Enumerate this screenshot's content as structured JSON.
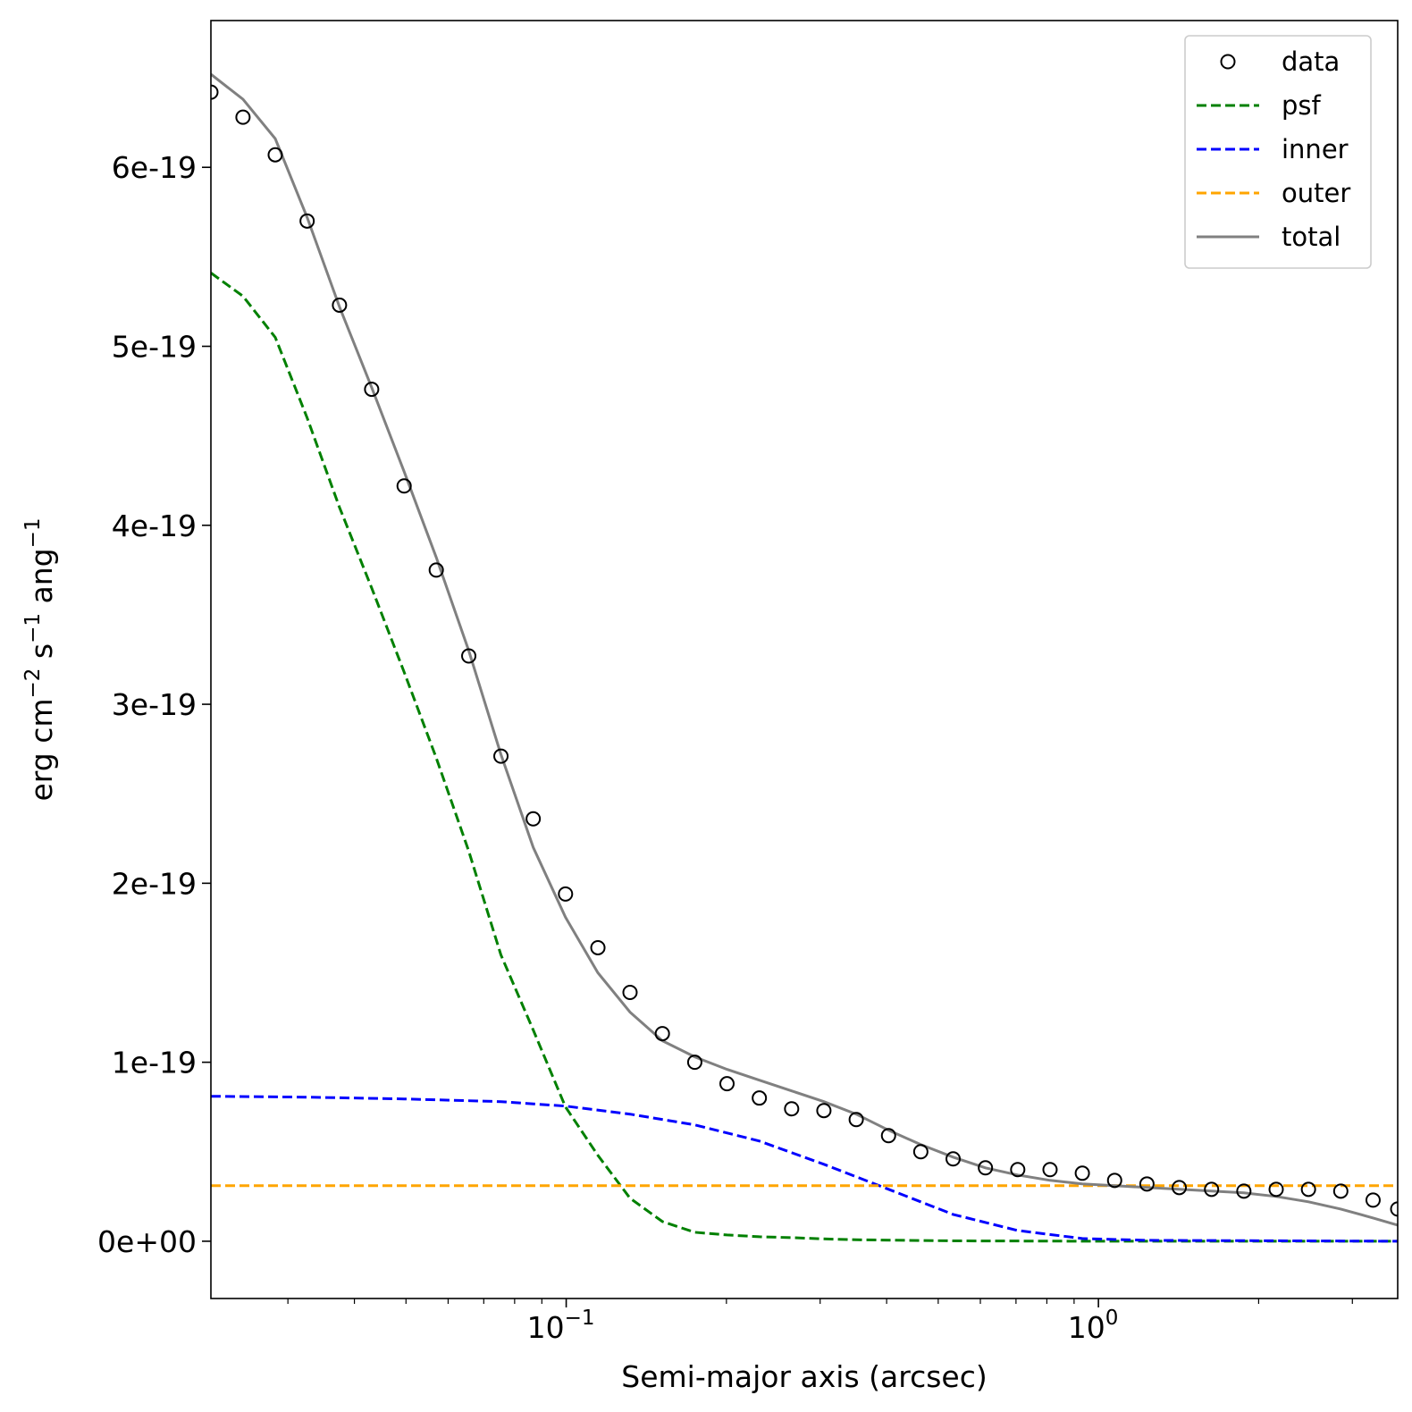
{
  "chart_data": {
    "type": "line",
    "title": "",
    "xlabel": "Semi-major axis (arcsec)",
    "ylabel": "erg cm^-2 s^-1 ang^-1",
    "xscale": "log",
    "xlim": [
      0.0215,
      3.65
    ],
    "ylim": [
      -3.2e-20,
      6.82e-19
    ],
    "grid": false,
    "legend_position": "top-right",
    "x_ticks": [
      {
        "value": 0.1,
        "base": "10",
        "exponent": "−1"
      },
      {
        "value": 1.0,
        "base": "10",
        "exponent": "0"
      }
    ],
    "y_ticks": [
      {
        "value": 0,
        "label": "0e+00"
      },
      {
        "value": 1e-19,
        "label": "1e-19"
      },
      {
        "value": 2e-19,
        "label": "2e-19"
      },
      {
        "value": 3e-19,
        "label": "3e-19"
      },
      {
        "value": 4e-19,
        "label": "4e-19"
      },
      {
        "value": 5e-19,
        "label": "5e-19"
      },
      {
        "value": 6e-19,
        "label": "6e-19"
      }
    ],
    "series": [
      {
        "name": "data",
        "style": "circle",
        "color": "#000000",
        "x": [
          0.0215,
          0.0247,
          0.0284,
          0.0326,
          0.0375,
          0.0431,
          0.0496,
          0.057,
          0.0656,
          0.0754,
          0.0867,
          0.0997,
          0.1147,
          0.1318,
          0.1516,
          0.1744,
          0.2005,
          0.2306,
          0.2652,
          0.3049,
          0.3507,
          0.4033,
          0.4637,
          0.5333,
          0.6133,
          0.7053,
          0.8111,
          0.9327,
          1.0726,
          1.2335,
          1.4186,
          1.6314,
          1.8761,
          2.1575,
          2.4811,
          2.8533,
          3.2813,
          3.65
        ],
        "values": [
          6.42e-19,
          6.28e-19,
          6.07e-19,
          5.7e-19,
          5.23e-19,
          4.76e-19,
          4.22e-19,
          3.75e-19,
          3.27e-19,
          2.71e-19,
          2.36e-19,
          1.94e-19,
          1.64e-19,
          1.39e-19,
          1.16e-19,
          1e-19,
          8.8e-20,
          8e-20,
          7.4e-20,
          7.3e-20,
          6.8e-20,
          5.9e-20,
          5e-20,
          4.6e-20,
          4.1e-20,
          4e-20,
          4e-20,
          3.8e-20,
          3.4e-20,
          3.2e-20,
          3e-20,
          2.9e-20,
          2.8e-20,
          2.9e-20,
          2.9e-20,
          2.8e-20,
          2.3e-20,
          1.8e-20
        ]
      },
      {
        "name": "psf",
        "style": "dashed",
        "color": "#008000",
        "x": [
          0.0215,
          0.0247,
          0.0284,
          0.0326,
          0.0375,
          0.0431,
          0.0496,
          0.057,
          0.0656,
          0.0754,
          0.0867,
          0.0997,
          0.1147,
          0.1318,
          0.1516,
          0.1744,
          0.2005,
          0.2306,
          0.2652,
          0.3049,
          0.3507,
          0.5333,
          1.0,
          3.65
        ],
        "values": [
          5.41e-19,
          5.28e-19,
          5.05e-19,
          4.6e-19,
          4.1e-19,
          3.65e-19,
          3.18e-19,
          2.7e-19,
          2.18e-19,
          1.6e-19,
          1.18e-19,
          7.5e-20,
          4.8e-20,
          2.4e-20,
          1.1e-20,
          5e-21,
          3.5e-21,
          2.5e-21,
          2e-21,
          1.3e-21,
          8e-22,
          2e-22,
          0,
          0
        ]
      },
      {
        "name": "inner",
        "style": "dashed",
        "color": "#0000ff",
        "x": [
          0.0215,
          0.0326,
          0.0496,
          0.0754,
          0.0997,
          0.1318,
          0.1744,
          0.2306,
          0.3049,
          0.4033,
          0.5333,
          0.7053,
          0.9327,
          1.2335,
          3.65
        ],
        "values": [
          8.1e-20,
          8.05e-20,
          7.95e-20,
          7.8e-20,
          7.55e-20,
          7.1e-20,
          6.5e-20,
          5.6e-20,
          4.3e-20,
          2.9e-20,
          1.5e-20,
          6e-21,
          1.5e-21,
          5e-22,
          0
        ]
      },
      {
        "name": "outer",
        "style": "dashed",
        "color": "#ffa500",
        "x": [
          0.0215,
          0.1,
          1.0,
          3.65
        ],
        "values": [
          3.1e-20,
          3.1e-20,
          3.1e-20,
          3.1e-20
        ]
      },
      {
        "name": "total",
        "style": "solid",
        "color": "#808080",
        "x": [
          0.0215,
          0.0247,
          0.0284,
          0.0326,
          0.0375,
          0.0431,
          0.0496,
          0.057,
          0.0656,
          0.0754,
          0.0867,
          0.0997,
          0.1147,
          0.1318,
          0.1516,
          0.1744,
          0.2005,
          0.2306,
          0.2652,
          0.3049,
          0.3507,
          0.4033,
          0.4637,
          0.5333,
          0.6133,
          0.7053,
          0.8111,
          0.9327,
          1.0726,
          1.2335,
          1.4186,
          1.6314,
          1.8761,
          2.1575,
          2.4811,
          2.8533,
          3.2813,
          3.65
        ],
        "values": [
          6.52e-19,
          6.38e-19,
          6.16e-19,
          5.72e-19,
          5.22e-19,
          4.77e-19,
          4.3e-19,
          3.82e-19,
          3.3e-19,
          2.72e-19,
          2.2e-19,
          1.81e-19,
          1.5e-19,
          1.28e-19,
          1.12e-19,
          1.03e-19,
          9.6e-20,
          9e-20,
          8.4e-20,
          7.8e-20,
          7.1e-20,
          6.2e-20,
          5.4e-20,
          4.7e-20,
          4.1e-20,
          3.7e-20,
          3.4e-20,
          3.2e-20,
          3.1e-20,
          3e-20,
          2.9e-20,
          2.8e-20,
          2.7e-20,
          2.5e-20,
          2.2e-20,
          1.8e-20,
          1.3e-20,
          9e-21
        ]
      }
    ]
  }
}
